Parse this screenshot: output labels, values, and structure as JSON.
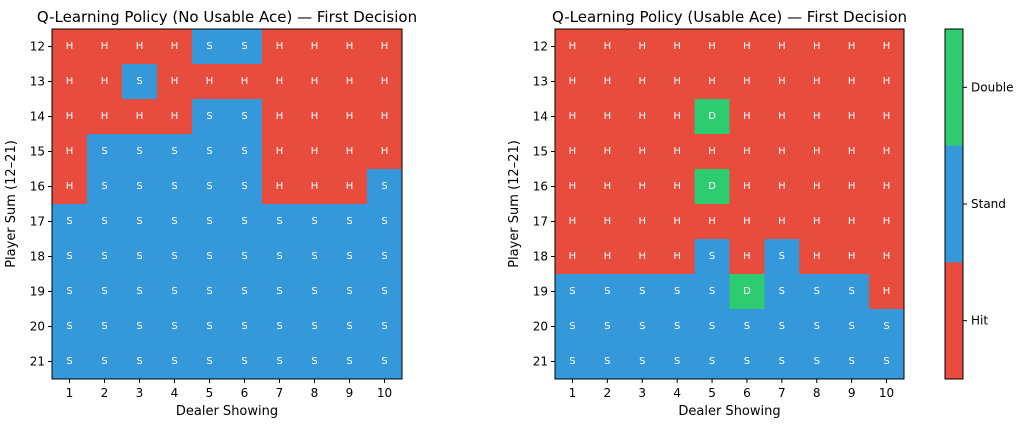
{
  "chart_data": [
    {
      "type": "heatmap",
      "title": "Q-Learning Policy (No Usable Ace) — First Decision",
      "xlabel": "Dealer Showing",
      "ylabel": "Player Sum (12–21)",
      "x_categories": [
        "1",
        "2",
        "3",
        "4",
        "5",
        "6",
        "7",
        "8",
        "9",
        "10"
      ],
      "y_categories": [
        "12",
        "13",
        "14",
        "15",
        "16",
        "17",
        "18",
        "19",
        "20",
        "21"
      ],
      "cells": [
        [
          "H",
          "H",
          "H",
          "H",
          "S",
          "S",
          "H",
          "H",
          "H",
          "H"
        ],
        [
          "H",
          "H",
          "S",
          "H",
          "H",
          "H",
          "H",
          "H",
          "H",
          "H"
        ],
        [
          "H",
          "H",
          "H",
          "H",
          "S",
          "S",
          "H",
          "H",
          "H",
          "H"
        ],
        [
          "H",
          "S",
          "S",
          "S",
          "S",
          "S",
          "H",
          "H",
          "H",
          "H"
        ],
        [
          "H",
          "S",
          "S",
          "S",
          "S",
          "S",
          "H",
          "H",
          "H",
          "S"
        ],
        [
          "S",
          "S",
          "S",
          "S",
          "S",
          "S",
          "S",
          "S",
          "S",
          "S"
        ],
        [
          "S",
          "S",
          "S",
          "S",
          "S",
          "S",
          "S",
          "S",
          "S",
          "S"
        ],
        [
          "S",
          "S",
          "S",
          "S",
          "S",
          "S",
          "S",
          "S",
          "S",
          "S"
        ],
        [
          "S",
          "S",
          "S",
          "S",
          "S",
          "S",
          "S",
          "S",
          "S",
          "S"
        ],
        [
          "S",
          "S",
          "S",
          "S",
          "S",
          "S",
          "S",
          "S",
          "S",
          "S"
        ]
      ]
    },
    {
      "type": "heatmap",
      "title": "Q-Learning Policy (Usable Ace) — First Decision",
      "xlabel": "Dealer Showing",
      "ylabel": "Player Sum (12–21)",
      "x_categories": [
        "1",
        "2",
        "3",
        "4",
        "5",
        "6",
        "7",
        "8",
        "9",
        "10"
      ],
      "y_categories": [
        "12",
        "13",
        "14",
        "15",
        "16",
        "17",
        "18",
        "19",
        "20",
        "21"
      ],
      "cells": [
        [
          "H",
          "H",
          "H",
          "H",
          "H",
          "H",
          "H",
          "H",
          "H",
          "H"
        ],
        [
          "H",
          "H",
          "H",
          "H",
          "H",
          "H",
          "H",
          "H",
          "H",
          "H"
        ],
        [
          "H",
          "H",
          "H",
          "H",
          "D",
          "H",
          "H",
          "H",
          "H",
          "H"
        ],
        [
          "H",
          "H",
          "H",
          "H",
          "H",
          "H",
          "H",
          "H",
          "H",
          "H"
        ],
        [
          "H",
          "H",
          "H",
          "H",
          "D",
          "H",
          "H",
          "H",
          "H",
          "H"
        ],
        [
          "H",
          "H",
          "H",
          "H",
          "H",
          "H",
          "H",
          "H",
          "H",
          "H"
        ],
        [
          "H",
          "H",
          "H",
          "H",
          "S",
          "H",
          "S",
          "H",
          "H",
          "H"
        ],
        [
          "S",
          "S",
          "S",
          "S",
          "S",
          "D",
          "S",
          "S",
          "S",
          "H"
        ],
        [
          "S",
          "S",
          "S",
          "S",
          "S",
          "S",
          "S",
          "S",
          "S",
          "S"
        ],
        [
          "S",
          "S",
          "S",
          "S",
          "S",
          "S",
          "S",
          "S",
          "S",
          "S"
        ]
      ]
    }
  ],
  "colorbar": {
    "entries": [
      {
        "code": "D",
        "label": "Double",
        "color": "#2ecc71"
      },
      {
        "code": "S",
        "label": "Stand",
        "color": "#3498db"
      },
      {
        "code": "H",
        "label": "Hit",
        "color": "#e74c3c"
      }
    ]
  }
}
